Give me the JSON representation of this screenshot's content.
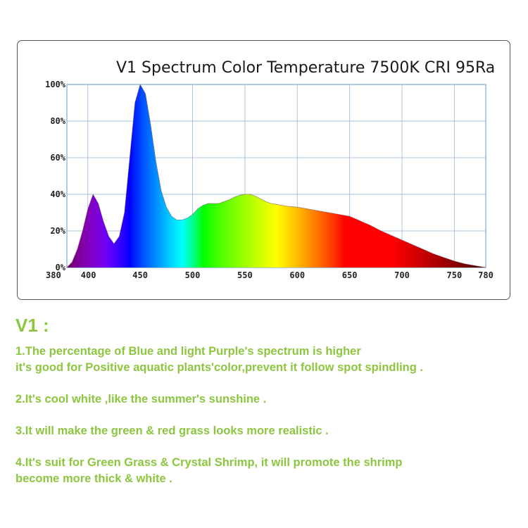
{
  "chart_data": {
    "type": "area",
    "title": "V1 Spectrum Color Temperature 7500K CRI 95Ra",
    "xlabel": "",
    "ylabel": "",
    "xlim": [
      380,
      780
    ],
    "ylim": [
      0,
      100
    ],
    "x_ticks": [
      "380",
      "400",
      "450",
      "500",
      "550",
      "600",
      "650",
      "700",
      "750",
      "780"
    ],
    "y_ticks": [
      "0%",
      "20%",
      "40%",
      "60%",
      "80%",
      "100%"
    ],
    "grid": true,
    "points": [
      [
        380,
        0
      ],
      [
        385,
        3
      ],
      [
        390,
        10
      ],
      [
        395,
        20
      ],
      [
        400,
        32
      ],
      [
        405,
        40
      ],
      [
        410,
        35
      ],
      [
        415,
        25
      ],
      [
        420,
        17
      ],
      [
        425,
        13
      ],
      [
        430,
        17
      ],
      [
        435,
        30
      ],
      [
        440,
        60
      ],
      [
        445,
        90
      ],
      [
        450,
        100
      ],
      [
        455,
        95
      ],
      [
        460,
        78
      ],
      [
        465,
        58
      ],
      [
        470,
        42
      ],
      [
        475,
        33
      ],
      [
        480,
        28
      ],
      [
        485,
        26
      ],
      [
        490,
        26
      ],
      [
        495,
        27
      ],
      [
        500,
        29
      ],
      [
        505,
        32
      ],
      [
        510,
        34
      ],
      [
        515,
        35
      ],
      [
        520,
        35
      ],
      [
        525,
        35
      ],
      [
        530,
        36
      ],
      [
        535,
        37
      ],
      [
        540,
        38.5
      ],
      [
        545,
        39.5
      ],
      [
        550,
        40
      ],
      [
        555,
        40
      ],
      [
        560,
        39
      ],
      [
        565,
        37.5
      ],
      [
        570,
        36
      ],
      [
        575,
        35
      ],
      [
        580,
        34.5
      ],
      [
        590,
        33.5
      ],
      [
        600,
        33
      ],
      [
        610,
        32
      ],
      [
        620,
        31
      ],
      [
        630,
        30
      ],
      [
        640,
        29
      ],
      [
        650,
        28
      ],
      [
        660,
        25.5
      ],
      [
        670,
        23
      ],
      [
        680,
        20
      ],
      [
        690,
        17.5
      ],
      [
        700,
        15
      ],
      [
        710,
        12.5
      ],
      [
        720,
        10
      ],
      [
        730,
        7.5
      ],
      [
        740,
        5.5
      ],
      [
        750,
        3.5
      ],
      [
        760,
        2
      ],
      [
        770,
        1
      ],
      [
        780,
        0
      ]
    ]
  },
  "heading": "V1 :",
  "notes": [
    [
      "1.The percentage of Blue and light Purple's spectrum is higher",
      "it's good for Positive aquatic plants'color,prevent it follow spot spindling ."
    ],
    [
      "2.It's cool white ,like the summer's sunshine ."
    ],
    [
      "3.It will make the green & red grass looks more realistic ."
    ],
    [
      "4.It's suit for Green Grass & Crystal Shrimp, it will promote the shrimp",
      "become more thick & white ."
    ]
  ]
}
